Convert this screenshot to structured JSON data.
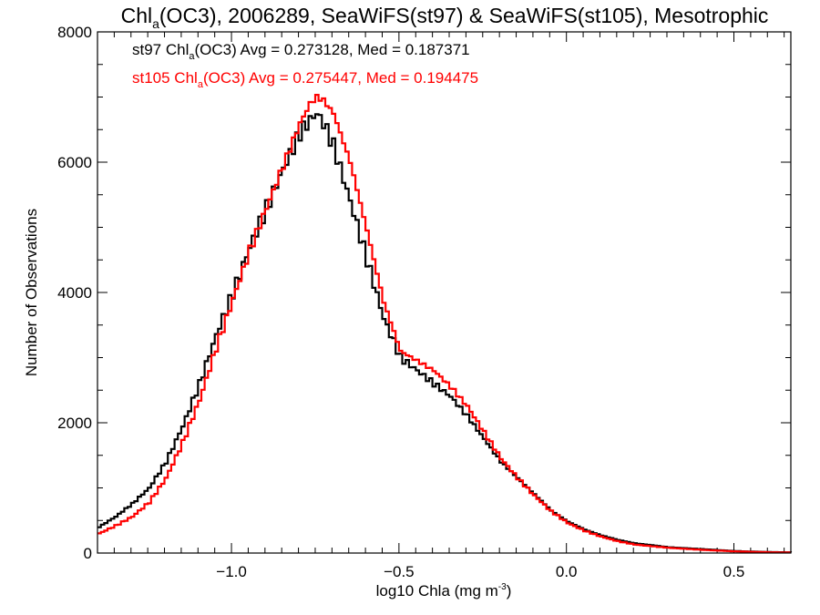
{
  "chart_data": {
    "type": "line",
    "title_parts": [
      "Chl",
      "a",
      "(OC3), 2006289, SeaWiFS(st97) & SeaWiFS(st105), Mesotrophic"
    ],
    "xlabel_parts": [
      "log10 Chla (mg m",
      "-3",
      ")"
    ],
    "ylabel": "Number of Observations",
    "xlim": [
      -1.4,
      0.67
    ],
    "ylim": [
      0,
      8000
    ],
    "x_ticks": [
      -1.0,
      -0.5,
      0.0,
      0.5
    ],
    "x_tick_labels": [
      "−1.0",
      "−0.5",
      "0.0",
      "0.5"
    ],
    "y_ticks": [
      0,
      2000,
      4000,
      6000,
      8000
    ],
    "y_tick_labels": [
      "0",
      "2000",
      "4000",
      "6000",
      "8000"
    ],
    "grid": false,
    "legend_position": "top-left",
    "series": [
      {
        "name": "st97",
        "color": "#000000",
        "label_parts": [
          "st97 Chl",
          "a",
          "(OC3) Avg = 0.273128, Med = 0.187371"
        ],
        "x": [
          -1.4,
          -1.35,
          -1.3,
          -1.25,
          -1.2,
          -1.15,
          -1.1,
          -1.05,
          -1.0,
          -0.95,
          -0.9,
          -0.85,
          -0.8,
          -0.77,
          -0.75,
          -0.73,
          -0.7,
          -0.65,
          -0.6,
          -0.55,
          -0.5,
          -0.45,
          -0.4,
          -0.35,
          -0.3,
          -0.25,
          -0.2,
          -0.15,
          -0.1,
          -0.05,
          0.0,
          0.05,
          0.1,
          0.15,
          0.2,
          0.3,
          0.4,
          0.5,
          0.6,
          0.67
        ],
        "values": [
          400,
          560,
          760,
          1000,
          1400,
          1950,
          2600,
          3350,
          4000,
          4700,
          5300,
          5900,
          6450,
          6650,
          6750,
          6600,
          6250,
          5400,
          4500,
          3600,
          3000,
          2800,
          2600,
          2400,
          2100,
          1750,
          1400,
          1150,
          900,
          650,
          480,
          360,
          270,
          200,
          150,
          90,
          60,
          30,
          15,
          10
        ]
      },
      {
        "name": "st105",
        "color": "#ff0000",
        "label_parts": [
          "st105 Chl",
          "a",
          "(OC3) Avg = 0.275447, Med = 0.194475"
        ],
        "x": [
          -1.4,
          -1.35,
          -1.3,
          -1.25,
          -1.2,
          -1.15,
          -1.1,
          -1.05,
          -1.0,
          -0.95,
          -0.9,
          -0.85,
          -0.8,
          -0.77,
          -0.75,
          -0.73,
          -0.7,
          -0.65,
          -0.6,
          -0.55,
          -0.5,
          -0.45,
          -0.4,
          -0.35,
          -0.3,
          -0.25,
          -0.2,
          -0.15,
          -0.1,
          -0.05,
          0.0,
          0.05,
          0.1,
          0.15,
          0.2,
          0.3,
          0.4,
          0.5,
          0.6,
          0.67
        ],
        "values": [
          300,
          420,
          560,
          780,
          1150,
          1700,
          2350,
          3150,
          3900,
          4650,
          5300,
          5950,
          6600,
          6900,
          7000,
          6950,
          6750,
          6000,
          4950,
          3850,
          3100,
          2950,
          2800,
          2550,
          2250,
          1850,
          1450,
          1150,
          880,
          640,
          460,
          340,
          250,
          180,
          130,
          80,
          50,
          25,
          12,
          8
        ]
      }
    ]
  }
}
